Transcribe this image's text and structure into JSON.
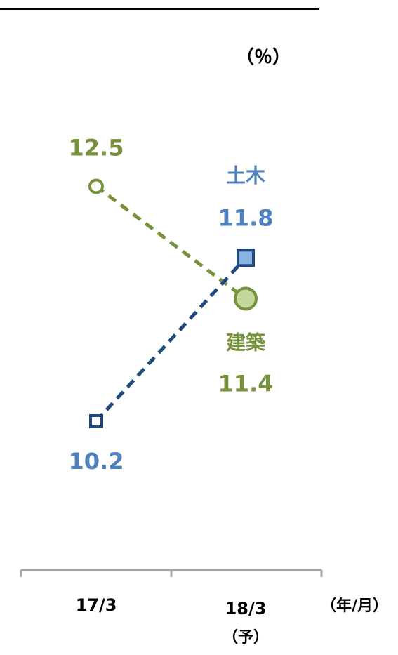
{
  "chart_data": {
    "type": "line",
    "unit_label": "（％）",
    "categories": [
      "17/3",
      "18/3"
    ],
    "category_sublabels": [
      "",
      "（予）"
    ],
    "x_unit_label": "（年/月）",
    "series": [
      {
        "name": "建築",
        "values": [
          12.5,
          11.4
        ],
        "value_labels": [
          "12.5",
          "11.4"
        ],
        "color": "#76923c",
        "fill_color": "#c3d69b",
        "marker": "circle",
        "line_style": "dashed"
      },
      {
        "name": "土木",
        "values": [
          10.2,
          11.8
        ],
        "value_labels": [
          "10.2",
          "11.8"
        ],
        "color": "#1f497d",
        "label_color": "#4f81bd",
        "fill_color": "#8db3e2",
        "marker": "square",
        "line_style": "dashed"
      }
    ],
    "y_range": [
      9.1,
      13.5
    ],
    "grid": false,
    "legend": "none"
  }
}
